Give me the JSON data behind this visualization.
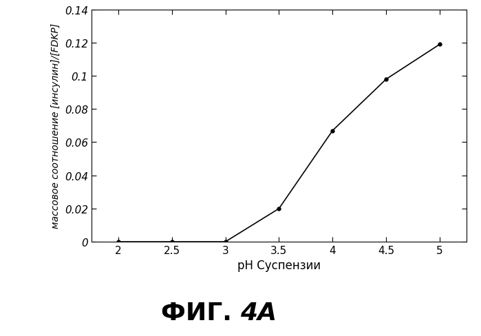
{
  "x": [
    2.0,
    2.5,
    3.0,
    3.5,
    4.0,
    4.5,
    5.0
  ],
  "y": [
    0.0,
    0.0,
    0.0,
    0.02,
    0.067,
    0.098,
    0.119
  ],
  "xlabel": "pH Суспензии",
  "ylabel": "массовое соотношение [инсулин]/[FDKP]",
  "title_main": "ФИГ. ",
  "title_italic": "4А",
  "xlim": [
    1.75,
    5.25
  ],
  "ylim": [
    0.0,
    0.14
  ],
  "xticks": [
    2.0,
    2.5,
    3.0,
    3.5,
    4.0,
    4.5,
    5.0
  ],
  "ytick_vals": [
    0.0,
    0.02,
    0.04,
    0.06,
    0.08,
    0.1,
    0.12,
    0.14
  ],
  "ytick_labels": [
    "0",
    "0.02",
    "0.04",
    "0.06",
    "0.08",
    "0.1",
    "0.12",
    "0.14"
  ],
  "line_color": "#000000",
  "marker": "o",
  "marker_size": 4,
  "background_color": "#ffffff",
  "xlabel_fontsize": 12,
  "ylabel_fontsize": 10,
  "tick_labelsize": 11
}
